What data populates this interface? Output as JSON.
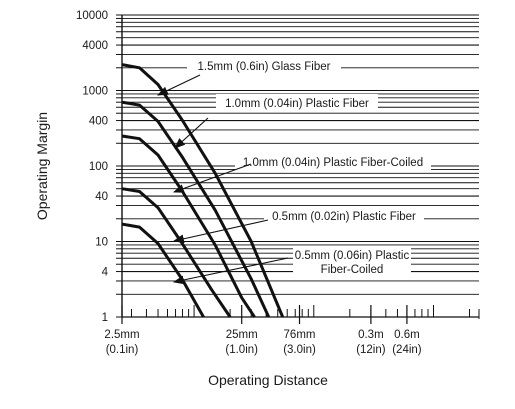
{
  "chart_data": {
    "type": "line",
    "xlabel": "Operating Distance",
    "ylabel": "Operating Margin",
    "x_scale": "log",
    "y_scale": "log",
    "xlim": [
      "2.5mm",
      "2.4m"
    ],
    "ylim": [
      1,
      10000
    ],
    "grid": true,
    "y_ticks": [
      {
        "value": 1,
        "label": "1"
      },
      {
        "value": 4,
        "label": "4"
      },
      {
        "value": 10,
        "label": "10"
      },
      {
        "value": 40,
        "label": "40"
      },
      {
        "value": 100,
        "label": "100"
      },
      {
        "value": 400,
        "label": "400"
      },
      {
        "value": 1000,
        "label": "1000"
      },
      {
        "value": 4000,
        "label": "4000"
      },
      {
        "value": 10000,
        "label": "10000"
      }
    ],
    "x_ticks": [
      {
        "value_mm": 2.5,
        "label1": "2.5mm",
        "label2": "(0.1in)"
      },
      {
        "value_mm": 25,
        "label1": "25mm",
        "label2": "(1.0in)"
      },
      {
        "value_mm": 76,
        "label1": "76mm",
        "label2": "(3.0in)"
      },
      {
        "value_mm": 300,
        "label1": "0.3m",
        "label2": "(12in)"
      },
      {
        "value_mm": 600,
        "label1": "0.6m",
        "label2": "(24in)"
      }
    ],
    "series": [
      {
        "name": "1.5mm (0.6in) Glass Fiber",
        "label_lines": [
          "1.5mm (0.6in) Glass Fiber"
        ],
        "points": [
          [
            2.5,
            2200
          ],
          [
            3.5,
            2000
          ],
          [
            5,
            1200
          ],
          [
            8,
            400
          ],
          [
            15,
            80
          ],
          [
            30,
            10
          ],
          [
            55,
            1
          ]
        ]
      },
      {
        "name": "1.0mm (0.04in) Plastic Fiber",
        "label_lines": [
          "1.0mm (0.04in) Plastic Fiber"
        ],
        "points": [
          [
            2.5,
            700
          ],
          [
            3.5,
            640
          ],
          [
            5,
            390
          ],
          [
            8,
            130
          ],
          [
            15,
            26
          ],
          [
            30,
            3.2
          ],
          [
            42,
            1
          ]
        ]
      },
      {
        "name": "1.0mm (0.04in) Plastic Fiber-Coiled",
        "label_lines": [
          "1.0mm (0.04in) Plastic Fiber-Coiled"
        ],
        "points": [
          [
            2.5,
            250
          ],
          [
            3.5,
            230
          ],
          [
            5,
            140
          ],
          [
            8,
            46
          ],
          [
            15,
            9
          ],
          [
            25,
            1.8
          ],
          [
            32,
            1
          ]
        ]
      },
      {
        "name": "0.5mm (0.02in) Plastic Fiber",
        "label_lines": [
          "0.5mm (0.02in) Plastic Fiber"
        ],
        "points": [
          [
            2.5,
            50
          ],
          [
            3.5,
            46
          ],
          [
            5,
            28
          ],
          [
            8,
            9.3
          ],
          [
            14,
            2.3
          ],
          [
            20,
            1
          ]
        ]
      },
      {
        "name": "0.5mm (0.06in) Plastic Fiber-Coiled",
        "label_lines": [
          "0.5mm (0.06in) Plastic",
          "Fiber-Coiled"
        ],
        "points": [
          [
            2.5,
            17
          ],
          [
            3.5,
            15.5
          ],
          [
            5,
            9.4
          ],
          [
            8,
            3.1
          ],
          [
            12,
            1
          ]
        ]
      }
    ]
  }
}
